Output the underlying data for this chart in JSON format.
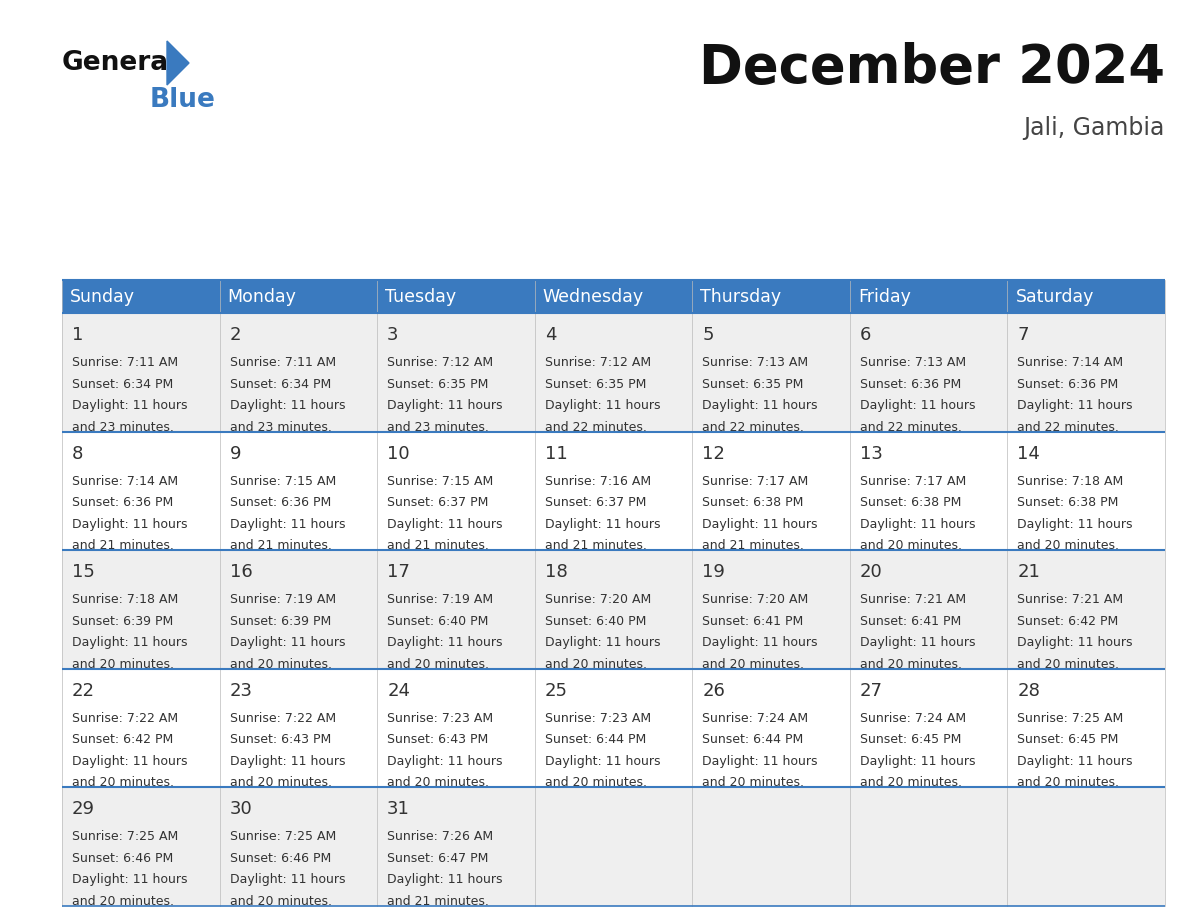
{
  "title": "December 2024",
  "subtitle": "Jali, Gambia",
  "header_color": "#3a7abf",
  "header_text_color": "#ffffff",
  "days_of_week": [
    "Sunday",
    "Monday",
    "Tuesday",
    "Wednesday",
    "Thursday",
    "Friday",
    "Saturday"
  ],
  "bg_color": "#ffffff",
  "cell_bg_odd": "#efefef",
  "cell_bg_even": "#ffffff",
  "separator_color": "#3a7abf",
  "text_color": "#333333",
  "calendar_data": [
    [
      {
        "day": 1,
        "sunrise": "7:11 AM",
        "sunset": "6:34 PM",
        "daylight": "11 hours and 23 minutes."
      },
      {
        "day": 2,
        "sunrise": "7:11 AM",
        "sunset": "6:34 PM",
        "daylight": "11 hours and 23 minutes."
      },
      {
        "day": 3,
        "sunrise": "7:12 AM",
        "sunset": "6:35 PM",
        "daylight": "11 hours and 23 minutes."
      },
      {
        "day": 4,
        "sunrise": "7:12 AM",
        "sunset": "6:35 PM",
        "daylight": "11 hours and 22 minutes."
      },
      {
        "day": 5,
        "sunrise": "7:13 AM",
        "sunset": "6:35 PM",
        "daylight": "11 hours and 22 minutes."
      },
      {
        "day": 6,
        "sunrise": "7:13 AM",
        "sunset": "6:36 PM",
        "daylight": "11 hours and 22 minutes."
      },
      {
        "day": 7,
        "sunrise": "7:14 AM",
        "sunset": "6:36 PM",
        "daylight": "11 hours and 22 minutes."
      }
    ],
    [
      {
        "day": 8,
        "sunrise": "7:14 AM",
        "sunset": "6:36 PM",
        "daylight": "11 hours and 21 minutes."
      },
      {
        "day": 9,
        "sunrise": "7:15 AM",
        "sunset": "6:36 PM",
        "daylight": "11 hours and 21 minutes."
      },
      {
        "day": 10,
        "sunrise": "7:15 AM",
        "sunset": "6:37 PM",
        "daylight": "11 hours and 21 minutes."
      },
      {
        "day": 11,
        "sunrise": "7:16 AM",
        "sunset": "6:37 PM",
        "daylight": "11 hours and 21 minutes."
      },
      {
        "day": 12,
        "sunrise": "7:17 AM",
        "sunset": "6:38 PM",
        "daylight": "11 hours and 21 minutes."
      },
      {
        "day": 13,
        "sunrise": "7:17 AM",
        "sunset": "6:38 PM",
        "daylight": "11 hours and 20 minutes."
      },
      {
        "day": 14,
        "sunrise": "7:18 AM",
        "sunset": "6:38 PM",
        "daylight": "11 hours and 20 minutes."
      }
    ],
    [
      {
        "day": 15,
        "sunrise": "7:18 AM",
        "sunset": "6:39 PM",
        "daylight": "11 hours and 20 minutes."
      },
      {
        "day": 16,
        "sunrise": "7:19 AM",
        "sunset": "6:39 PM",
        "daylight": "11 hours and 20 minutes."
      },
      {
        "day": 17,
        "sunrise": "7:19 AM",
        "sunset": "6:40 PM",
        "daylight": "11 hours and 20 minutes."
      },
      {
        "day": 18,
        "sunrise": "7:20 AM",
        "sunset": "6:40 PM",
        "daylight": "11 hours and 20 minutes."
      },
      {
        "day": 19,
        "sunrise": "7:20 AM",
        "sunset": "6:41 PM",
        "daylight": "11 hours and 20 minutes."
      },
      {
        "day": 20,
        "sunrise": "7:21 AM",
        "sunset": "6:41 PM",
        "daylight": "11 hours and 20 minutes."
      },
      {
        "day": 21,
        "sunrise": "7:21 AM",
        "sunset": "6:42 PM",
        "daylight": "11 hours and 20 minutes."
      }
    ],
    [
      {
        "day": 22,
        "sunrise": "7:22 AM",
        "sunset": "6:42 PM",
        "daylight": "11 hours and 20 minutes."
      },
      {
        "day": 23,
        "sunrise": "7:22 AM",
        "sunset": "6:43 PM",
        "daylight": "11 hours and 20 minutes."
      },
      {
        "day": 24,
        "sunrise": "7:23 AM",
        "sunset": "6:43 PM",
        "daylight": "11 hours and 20 minutes."
      },
      {
        "day": 25,
        "sunrise": "7:23 AM",
        "sunset": "6:44 PM",
        "daylight": "11 hours and 20 minutes."
      },
      {
        "day": 26,
        "sunrise": "7:24 AM",
        "sunset": "6:44 PM",
        "daylight": "11 hours and 20 minutes."
      },
      {
        "day": 27,
        "sunrise": "7:24 AM",
        "sunset": "6:45 PM",
        "daylight": "11 hours and 20 minutes."
      },
      {
        "day": 28,
        "sunrise": "7:25 AM",
        "sunset": "6:45 PM",
        "daylight": "11 hours and 20 minutes."
      }
    ],
    [
      {
        "day": 29,
        "sunrise": "7:25 AM",
        "sunset": "6:46 PM",
        "daylight": "11 hours and 20 minutes."
      },
      {
        "day": 30,
        "sunrise": "7:25 AM",
        "sunset": "6:46 PM",
        "daylight": "11 hours and 20 minutes."
      },
      {
        "day": 31,
        "sunrise": "7:26 AM",
        "sunset": "6:47 PM",
        "daylight": "11 hours and 21 minutes."
      },
      null,
      null,
      null,
      null
    ]
  ]
}
